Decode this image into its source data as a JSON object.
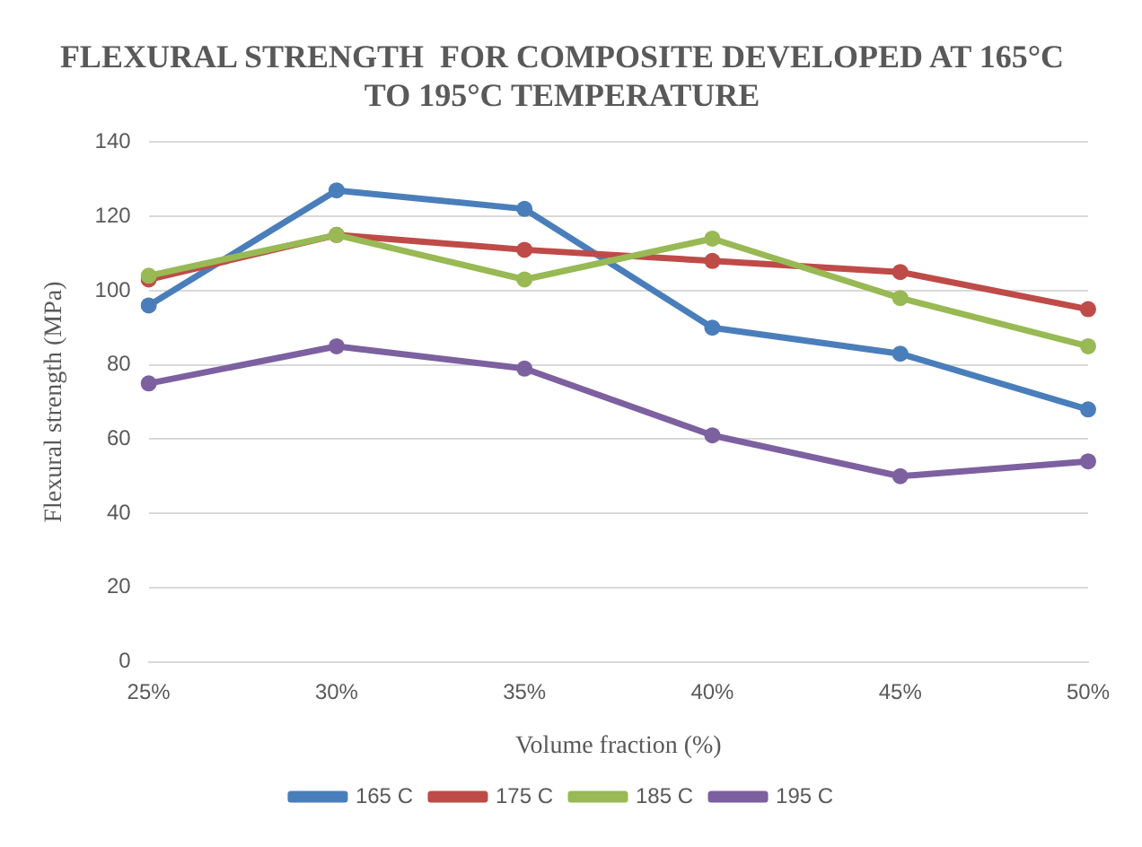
{
  "chart_data": {
    "type": "line",
    "title": "FLEXURAL STRENGTH  FOR COMPOSITE DEVELOPED AT 165°C TO 195°C TEMPERATURE",
    "xlabel": "Volume fraction (%)",
    "ylabel": "Flexural strength (MPa)",
    "categories": [
      "25%",
      "30%",
      "35%",
      "40%",
      "45%",
      "50%"
    ],
    "series": [
      {
        "name": "165 C",
        "color": "#4a7ebb",
        "values": [
          96,
          127,
          122,
          90,
          83,
          68
        ]
      },
      {
        "name": "175 C",
        "color": "#be4b48",
        "values": [
          103,
          115,
          111,
          108,
          105,
          95
        ]
      },
      {
        "name": "185 C",
        "color": "#98b954",
        "values": [
          104,
          115,
          103,
          114,
          98,
          85
        ]
      },
      {
        "name": "195 C",
        "color": "#7d60a0",
        "values": [
          75,
          85,
          79,
          61,
          50,
          54
        ]
      }
    ],
    "ylim": [
      0,
      140
    ],
    "yticks": [
      0,
      20,
      40,
      60,
      80,
      100,
      120,
      140
    ],
    "grid": "y",
    "legend": "bottom",
    "marker": "circle",
    "line_style": "solid"
  }
}
